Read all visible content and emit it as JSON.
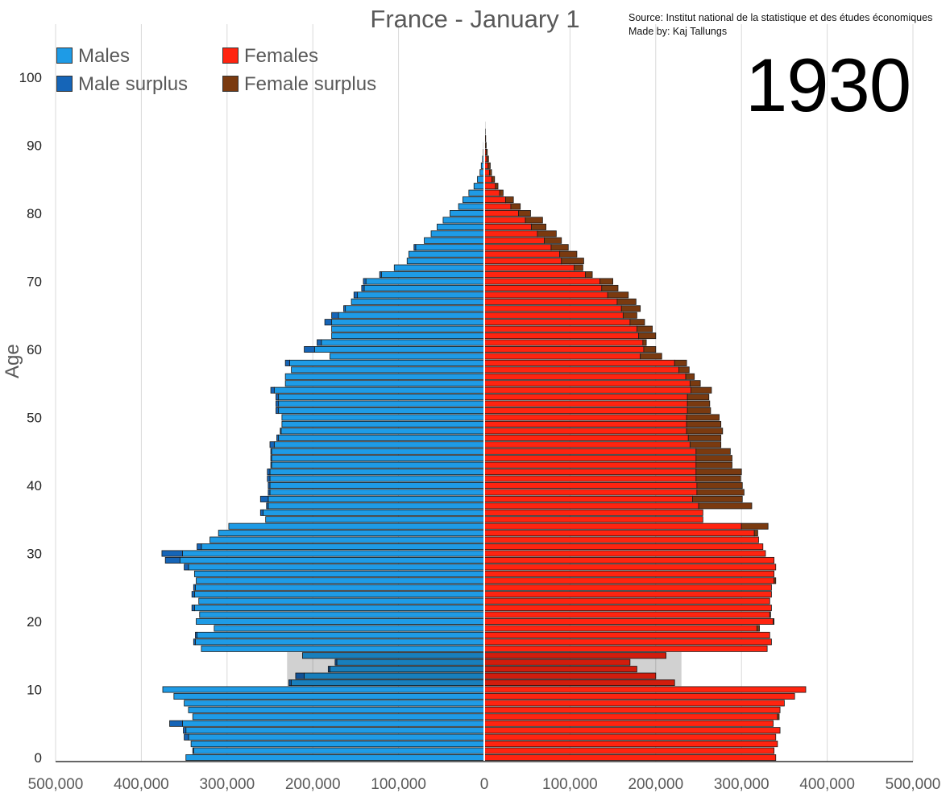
{
  "title": "France - January 1",
  "source_line": "Source: Institut national de la statistique et des études économiques",
  "author_line": "Made by: Kaj Tallungs",
  "year_label": "1930",
  "legend": [
    {
      "label": "Males",
      "color": "#1E9BE6"
    },
    {
      "label": "Females",
      "color": "#FF2410"
    },
    {
      "label": "Male surplus",
      "color": "#1565B8"
    },
    {
      "label": "Female surplus",
      "color": "#7A3A10"
    }
  ],
  "colors": {
    "males": "#1E9BE6",
    "females": "#FF2410",
    "male_surplus": "#1565B8",
    "female_surplus": "#7A3A10",
    "deficit_overlay_male": "#1A6AA8",
    "deficit_overlay_female": "#C91A0F",
    "grid": "#D9D9D9",
    "axis_text": "#595959"
  },
  "chart_data": {
    "type": "bar",
    "orientation": "horizontal",
    "title": "France - January 1",
    "xlabel": "",
    "ylabel": "Age",
    "xlim": [
      -500000,
      500000
    ],
    "ylim": [
      0,
      100
    ],
    "x_ticks": [
      "500,000",
      "400,000",
      "300,000",
      "200,000",
      "100,000",
      "0",
      "100,000",
      "200,000",
      "300,000",
      "400,000",
      "500,000"
    ],
    "y_ticks": [
      "0",
      "10",
      "20",
      "30",
      "40",
      "50",
      "60",
      "70",
      "80",
      "90",
      "100"
    ],
    "grid": true,
    "legend_position": "top-left",
    "ages": [
      0,
      1,
      2,
      3,
      4,
      5,
      6,
      7,
      8,
      9,
      10,
      11,
      12,
      13,
      14,
      15,
      16,
      17,
      18,
      19,
      20,
      21,
      22,
      23,
      24,
      25,
      26,
      27,
      28,
      29,
      30,
      31,
      32,
      33,
      34,
      35,
      36,
      37,
      38,
      39,
      40,
      41,
      42,
      43,
      44,
      45,
      46,
      47,
      48,
      49,
      50,
      51,
      52,
      53,
      54,
      55,
      56,
      57,
      58,
      59,
      60,
      61,
      62,
      63,
      64,
      65,
      66,
      67,
      68,
      69,
      70,
      71,
      72,
      73,
      74,
      75,
      76,
      77,
      78,
      79,
      80,
      81,
      82,
      83,
      84,
      85,
      86,
      87,
      88,
      89,
      90,
      91,
      92,
      93,
      94,
      95,
      96,
      97,
      98,
      99,
      100
    ],
    "series": [
      {
        "name": "Males",
        "values": [
          348000,
          339000,
          342000,
          345000,
          348000,
          352000,
          340000,
          345000,
          350000,
          362000,
          375000,
          225000,
          210000,
          180000,
          172000,
          212000,
          330000,
          337000,
          335000,
          315000,
          336000,
          332000,
          338000,
          333000,
          338000,
          337000,
          336000,
          338000,
          345000,
          355000,
          352000,
          330000,
          320000,
          310000,
          298000,
          255000,
          258000,
          252000,
          252000,
          250000,
          250000,
          250000,
          250000,
          248000,
          248000,
          248000,
          245000,
          240000,
          237000,
          236000,
          236000,
          240000,
          240000,
          240000,
          245000,
          232000,
          232000,
          225000,
          227000,
          180000,
          198000,
          190000,
          178000,
          178000,
          178000,
          170000,
          162000,
          155000,
          148000,
          140000,
          138000,
          120000,
          105000,
          90000,
          88000,
          80000,
          70000,
          62000,
          55000,
          48000,
          40000,
          30000,
          25000,
          18000,
          12000,
          8000,
          5000,
          3500,
          2000,
          1000,
          700,
          400,
          300,
          200,
          100,
          100,
          50,
          30,
          20,
          10,
          5
        ]
      },
      {
        "name": "Females",
        "values": [
          340000,
          338000,
          342000,
          340000,
          345000,
          337000,
          342000,
          345000,
          350000,
          362000,
          375000,
          222000,
          200000,
          178000,
          170000,
          212000,
          330000,
          335000,
          333000,
          318000,
          337000,
          333000,
          335000,
          333000,
          335000,
          335000,
          338000,
          338000,
          340000,
          338000,
          328000,
          325000,
          320000,
          315000,
          300000,
          255000,
          255000,
          250000,
          243000,
          248000,
          248000,
          247000,
          247000,
          247000,
          247000,
          247000,
          240000,
          238000,
          236000,
          236000,
          236000,
          237000,
          237000,
          237000,
          241000,
          240000,
          235000,
          227000,
          222000,
          182000,
          186000,
          185000,
          180000,
          178000,
          170000,
          162000,
          160000,
          155000,
          144000,
          137000,
          135000,
          118000,
          105000,
          90000,
          88000,
          78000,
          70000,
          62000,
          55000,
          48000,
          40000,
          31000,
          25000,
          18000,
          13000,
          9000,
          6000,
          4500,
          3000,
          2000,
          1200,
          800,
          500,
          300,
          200,
          150,
          100,
          50,
          30,
          20,
          10
        ]
      },
      {
        "name": "Male surplus",
        "values": [
          0,
          1000,
          0,
          5000,
          3000,
          15000,
          0,
          0,
          0,
          0,
          0,
          3000,
          10000,
          2000,
          2000,
          0,
          0,
          2000,
          2000,
          0,
          0,
          0,
          3000,
          0,
          3000,
          2000,
          0,
          0,
          5000,
          17000,
          24000,
          5000,
          0,
          0,
          0,
          0,
          3000,
          2000,
          9000,
          2000,
          2000,
          3000,
          3000,
          1000,
          1000,
          1000,
          5000,
          2000,
          1000,
          0,
          0,
          3000,
          3000,
          3000,
          4000,
          0,
          0,
          0,
          5000,
          0,
          12000,
          5000,
          0,
          0,
          8000,
          8000,
          2000,
          0,
          4000,
          3000,
          3000,
          2000,
          0,
          0,
          0,
          2000,
          0,
          0,
          0,
          0,
          0,
          0,
          0,
          0,
          0,
          0,
          0,
          0,
          0,
          0,
          0,
          0,
          0,
          0,
          0,
          0,
          0,
          0,
          0,
          0,
          0
        ]
      },
      {
        "name": "Female surplus",
        "values": [
          0,
          0,
          0,
          0,
          0,
          0,
          2000,
          0,
          0,
          0,
          0,
          0,
          0,
          0,
          0,
          0,
          0,
          0,
          0,
          3000,
          1000,
          1000,
          0,
          0,
          0,
          0,
          2000,
          0,
          0,
          0,
          0,
          0,
          0,
          4000,
          31000,
          0,
          0,
          62000,
          58000,
          55000,
          53000,
          52000,
          53000,
          42000,
          42000,
          40000,
          36000,
          38000,
          42000,
          40000,
          38000,
          27000,
          26000,
          25000,
          24000,
          12000,
          10000,
          12000,
          14000,
          25000,
          14000,
          4000,
          20000,
          18000,
          17000,
          16000,
          22000,
          22000,
          24000,
          19000,
          15000,
          8000,
          10000,
          26000,
          20000,
          20000,
          20000,
          22000,
          17000,
          20000,
          14000,
          11000,
          9000,
          4000,
          3000,
          3000,
          2500,
          2500,
          2000,
          1500,
          1100,
          900,
          600,
          400,
          300,
          250,
          200,
          150,
          80,
          50,
          30,
          20
        ]
      }
    ]
  }
}
